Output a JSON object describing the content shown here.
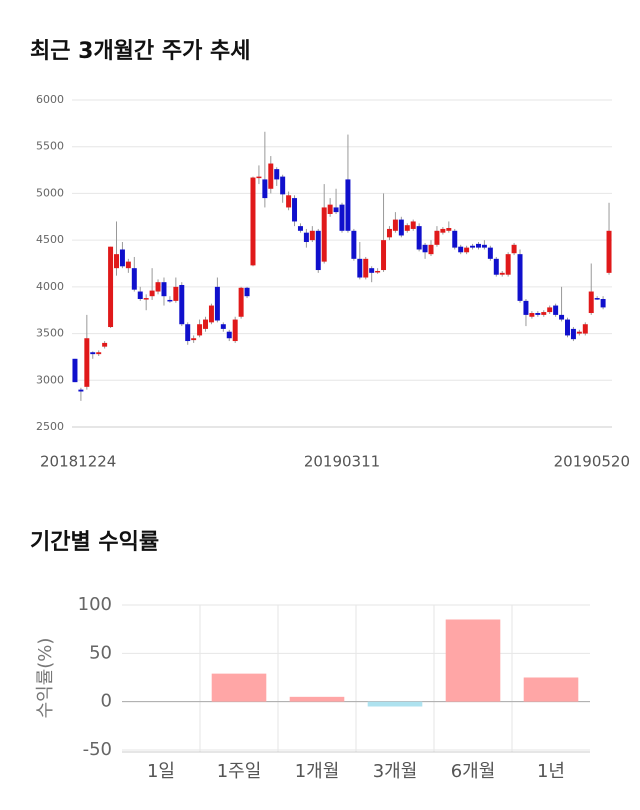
{
  "chart_data": [
    {
      "type": "candlestick",
      "title": "최근 3개월간 주가 추세",
      "categories": [
        "20181224",
        null,
        null,
        null,
        null,
        null,
        null,
        null,
        null,
        null,
        null,
        null,
        null,
        null,
        null,
        null,
        null,
        null,
        null,
        null,
        null,
        null,
        null,
        null,
        null,
        null,
        null,
        null,
        null,
        null,
        null,
        null,
        null,
        null,
        null,
        null,
        null,
        null,
        null,
        null,
        null,
        null,
        null,
        null,
        null,
        "20190311",
        null,
        null,
        null,
        null,
        null,
        null,
        null,
        null,
        null,
        null,
        null,
        null,
        null,
        null,
        null,
        null,
        null,
        null,
        null,
        null,
        null,
        null,
        null,
        null,
        null,
        null,
        null,
        null,
        null,
        null,
        null,
        null,
        null,
        null,
        null,
        null,
        null,
        null,
        null,
        null,
        null,
        null,
        null,
        null,
        "20190520"
      ],
      "open": [
        3230,
        2900,
        2930,
        3300,
        3280,
        3360,
        3570,
        4200,
        4400,
        4200,
        4200,
        3950,
        3870,
        3900,
        3950,
        4050,
        3860,
        3850,
        4020,
        3600,
        3430,
        3480,
        3550,
        3620,
        4000,
        3600,
        3520,
        3420,
        3680,
        3990,
        4230,
        5170,
        5150,
        5050,
        5260,
        5180,
        4850,
        4950,
        4650,
        4580,
        4500,
        4600,
        4270,
        4780,
        4850,
        4880,
        5150,
        4600,
        4300,
        4100,
        4200,
        4160,
        4180,
        4530,
        4600,
        4720,
        4600,
        4620,
        4650,
        4450,
        4350,
        4450,
        4580,
        4600,
        4600,
        4430,
        4370,
        4440,
        4460,
        4450,
        4420,
        4300,
        4130,
        4130,
        4360,
        4350,
        3850,
        3680,
        3720,
        3700,
        3730,
        3800,
        3700,
        3650,
        3550,
        3500,
        3500,
        3720,
        3880,
        3870,
        4150
      ],
      "high": [
        3230,
        2920,
        3700,
        3310,
        3320,
        3420,
        4430,
        4700,
        4480,
        4300,
        4320,
        4000,
        3920,
        4200,
        4080,
        4100,
        3900,
        4100,
        4050,
        3620,
        3480,
        3650,
        3680,
        3820,
        4100,
        3620,
        3540,
        3680,
        4000,
        4000,
        5180,
        5300,
        5660,
        5400,
        5280,
        5200,
        5020,
        4980,
        4680,
        4620,
        4650,
        4620,
        5100,
        4950,
        5050,
        4900,
        5630,
        4620,
        4480,
        4320,
        4220,
        4200,
        5000,
        4650,
        4800,
        4750,
        4680,
        4720,
        4680,
        4470,
        4500,
        4650,
        4640,
        4700,
        4620,
        4450,
        4440,
        4460,
        4480,
        4500,
        4440,
        4320,
        4170,
        4370,
        4470,
        4400,
        3870,
        3740,
        3740,
        3750,
        3800,
        3820,
        4000,
        3670,
        3570,
        3540,
        3620,
        4250,
        3900,
        3900,
        4900
      ],
      "low": [
        2980,
        2780,
        2900,
        3230,
        3260,
        3340,
        3560,
        4120,
        4200,
        4150,
        3950,
        3850,
        3750,
        3860,
        3920,
        3800,
        3830,
        3830,
        3580,
        3380,
        3400,
        3460,
        3520,
        3600,
        3620,
        3520,
        3420,
        3400,
        3660,
        3880,
        4220,
        5100,
        4850,
        5000,
        5080,
        4900,
        4820,
        4650,
        4580,
        4420,
        4480,
        4150,
        4250,
        4750,
        4780,
        4580,
        4580,
        4280,
        4080,
        4080,
        4050,
        4140,
        4160,
        4500,
        4580,
        4530,
        4580,
        4600,
        4380,
        4300,
        4330,
        4430,
        4560,
        4580,
        4400,
        4350,
        4350,
        4400,
        4400,
        4400,
        4280,
        4110,
        4110,
        4110,
        4340,
        3830,
        3580,
        3660,
        3680,
        3680,
        3710,
        3680,
        3630,
        3460,
        3420,
        3480,
        3480,
        3700,
        3860,
        3760,
        4130
      ],
      "close": [
        2980,
        2880,
        3450,
        3280,
        3300,
        3400,
        4430,
        4350,
        4220,
        4270,
        3970,
        3870,
        3880,
        3960,
        4050,
        3900,
        3850,
        4000,
        3600,
        3420,
        3450,
        3600,
        3650,
        3800,
        3640,
        3550,
        3450,
        3650,
        3990,
        3900,
        5170,
        5180,
        4950,
        5320,
        5150,
        4990,
        4980,
        4700,
        4600,
        4480,
        4600,
        4180,
        4850,
        4880,
        4800,
        4600,
        4600,
        4300,
        4100,
        4300,
        4150,
        4170,
        4500,
        4620,
        4720,
        4550,
        4660,
        4700,
        4400,
        4370,
        4450,
        4600,
        4620,
        4630,
        4420,
        4370,
        4420,
        4420,
        4420,
        4420,
        4300,
        4130,
        4150,
        4350,
        4450,
        3850,
        3700,
        3720,
        3700,
        3730,
        3780,
        3700,
        3650,
        3480,
        3440,
        3520,
        3600,
        3950,
        3870,
        3780,
        4600
      ],
      "up_color": "#e0191a",
      "down_color": "#1010cc",
      "ylim": [
        2500,
        6000
      ],
      "yticks": [
        2500,
        3000,
        3500,
        4000,
        4500,
        5000,
        5500,
        6000
      ],
      "grid": true
    },
    {
      "type": "bar",
      "title": "기간별 수익률",
      "y_label": "수익률(%)",
      "categories": [
        "1일",
        "1주일",
        "1개월",
        "3개월",
        "6개월",
        "1년"
      ],
      "values": [
        0,
        29,
        5,
        -5,
        85,
        25
      ],
      "color": "#ffa6a6",
      "negative_color": "#aee2ef",
      "ylim": [
        -50,
        100
      ],
      "yticks": [
        -50,
        0,
        50,
        100
      ],
      "grid": true
    }
  ]
}
